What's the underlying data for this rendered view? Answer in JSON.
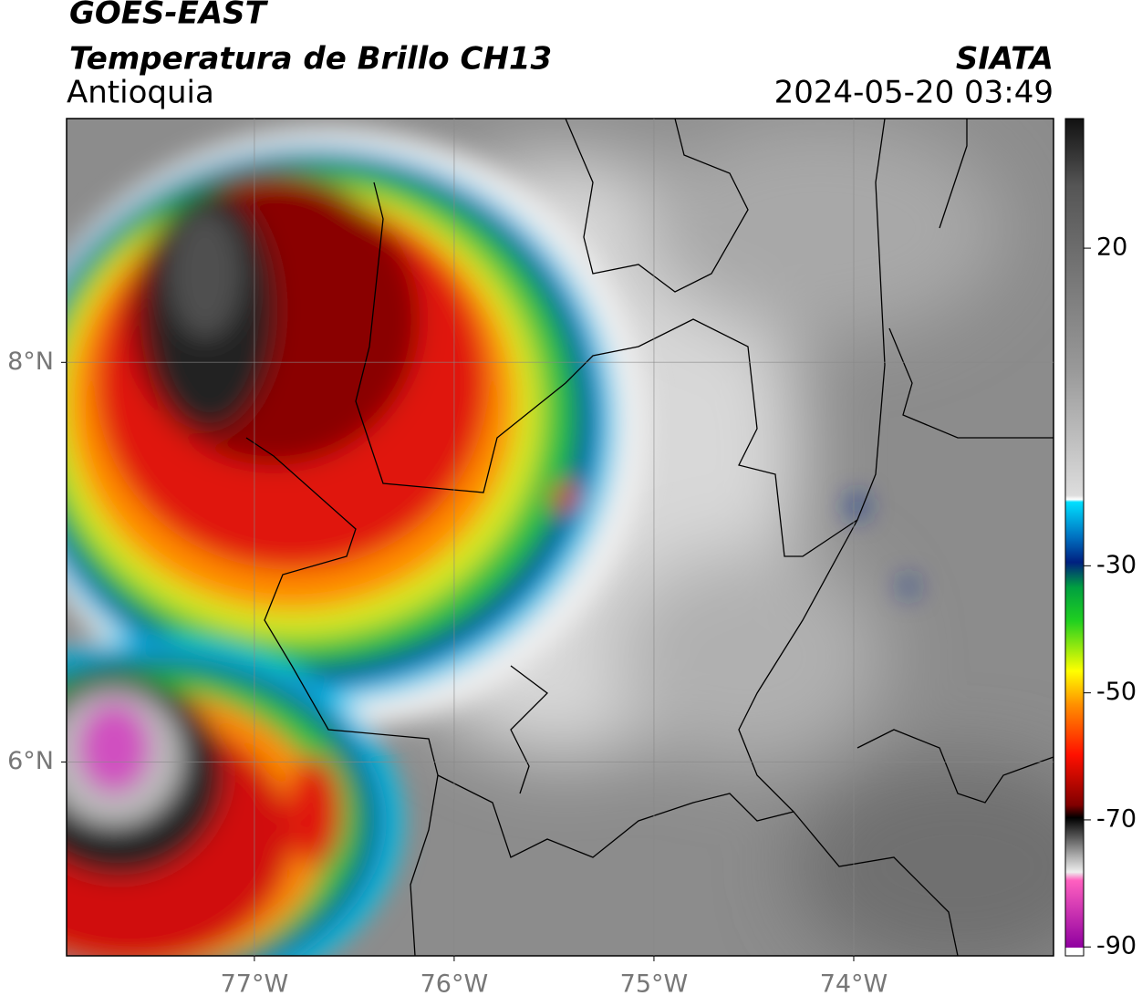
{
  "header": {
    "title": "GOES-EAST",
    "subtitle": "Temperatura de Brillo CH13",
    "region": "Antioquia",
    "agency": "SIATA",
    "datetime": "2024-05-20 03:49"
  },
  "map": {
    "lonlim": [
      -77.94,
      -73.0
    ],
    "latlim": [
      5.03,
      9.22
    ],
    "lon_ticks": [
      {
        "value": -77,
        "label": "77°W"
      },
      {
        "value": -76,
        "label": "76°W"
      },
      {
        "value": -75,
        "label": "75°W"
      },
      {
        "value": -74,
        "label": "74°W"
      }
    ],
    "lat_ticks": [
      {
        "value": 8,
        "label": "8°N"
      },
      {
        "value": 6,
        "label": "6°N"
      }
    ],
    "grid": true
  },
  "colorbar": {
    "lim": [
      -91.4,
      40.4
    ],
    "ticks": [
      20,
      -30,
      -50,
      -70,
      -90
    ]
  }
}
